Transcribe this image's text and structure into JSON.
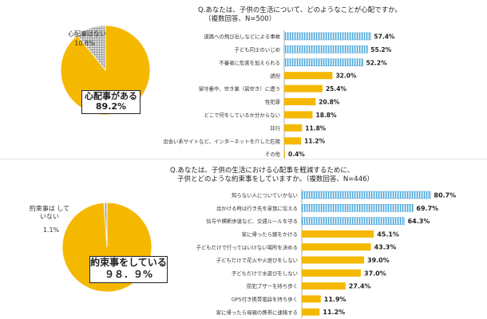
{
  "chart_data": [
    {
      "type": "pie",
      "title": "",
      "slices": [
        {
          "label": "心配事がある",
          "value": 89.2,
          "value_label": "89.2%"
        },
        {
          "label": "心配事はない",
          "value": 10.8,
          "value_label": "10.8%"
        }
      ],
      "colors": {
        "main": "#F5B800",
        "minor": "#9A9A9A"
      }
    },
    {
      "type": "bar",
      "orientation": "horizontal",
      "title": "Q.あなたは、子供の生活について、どのようなことが心配ですか。",
      "subtitle": "（複数回答、N=500）",
      "categories": [
        "道路への飛び出しなどによる事故",
        "子ども同士のいじめ",
        "不審者に危害を加えられる",
        "誘拐",
        "留守番中、空き巣（居空き）に遭う",
        "性犯罪",
        "どこで何をしているか分からない",
        "非行",
        "出会い系サイトなど、インターネットを介した危険",
        "その他"
      ],
      "values": [
        57.4,
        55.2,
        52.2,
        32.0,
        25.4,
        20.8,
        18.8,
        11.8,
        11.2,
        0.4
      ],
      "value_labels": [
        "57.4%",
        "55.2%",
        "52.2%",
        "32.0%",
        "25.4%",
        "20.8%",
        "18.8%",
        "11.8%",
        "11.2%",
        "0.4%"
      ],
      "highlight_top": 3,
      "xlim": [
        0,
        90
      ]
    },
    {
      "type": "pie",
      "title": "",
      "slices": [
        {
          "label": "約束事をしている",
          "value": 98.9,
          "value_label": "９８．９%"
        },
        {
          "label": "約束事は していない",
          "value": 1.1,
          "value_label": "1.1%"
        }
      ],
      "colors": {
        "main": "#F5B800",
        "minor": "#9A9A9A"
      }
    },
    {
      "type": "bar",
      "orientation": "horizontal",
      "title": "Q.あなたは、子供の生活における心配事を軽減するために、",
      "subtitle": "子供とどのような約束事をしていますか。（複数回答、N=446）",
      "categories": [
        "知らない人についていかない",
        "出かける時は行き先を家族に伝える",
        "信号や横断歩道など、交通ルールを守る",
        "家に帰ったら鍵をかける",
        "子どもだけで行ってはいけない場所を決める",
        "子どもだけで花火や火遊びをしない",
        "子どもだけで水遊びをしない",
        "防犯ブザーを持ち歩く",
        "GPS付き携帯電話を持ち歩く",
        "家に帰ったら母親の携帯に連絡する"
      ],
      "values": [
        80.7,
        69.7,
        64.3,
        45.1,
        43.3,
        39.0,
        37.0,
        27.4,
        11.9,
        11.2
      ],
      "value_labels": [
        "80.7%",
        "69.7%",
        "64.3%",
        "45.1%",
        "43.3%",
        "39.0%",
        "37.0%",
        "27.4%",
        "11.9%",
        "11.2%"
      ],
      "highlight_top": 3,
      "xlim": [
        0,
        90
      ]
    }
  ],
  "colors": {
    "bar": "#F5B800",
    "highlight_stripe": "#4AA3D8",
    "highlight_bg": "#D7EEF8",
    "pie_main": "#F5B800",
    "pie_minor": "#9A9A9A"
  }
}
